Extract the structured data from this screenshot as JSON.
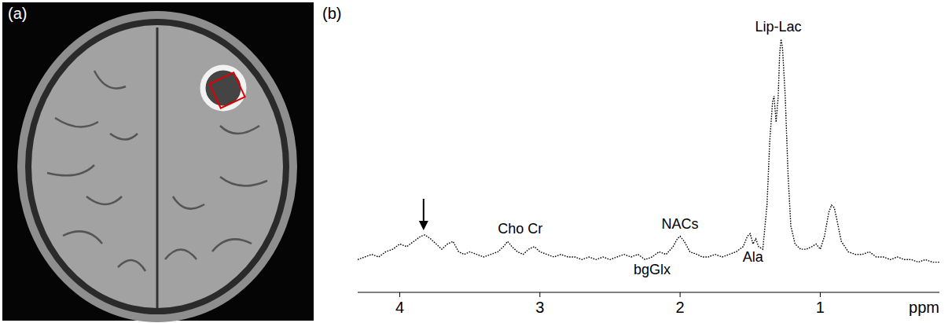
{
  "figure": {
    "panel_labels": [
      "(a)",
      "(b)"
    ]
  },
  "chart_data": {
    "type": "line",
    "xlabel": "ppm",
    "x": [
      4.3,
      4.25,
      4.2,
      4.15,
      4.1,
      4.05,
      4.0,
      3.95,
      3.9,
      3.85,
      3.82,
      3.78,
      3.74,
      3.7,
      3.66,
      3.62,
      3.58,
      3.54,
      3.5,
      3.45,
      3.4,
      3.35,
      3.3,
      3.26,
      3.23,
      3.2,
      3.16,
      3.12,
      3.08,
      3.04,
      3.0,
      2.95,
      2.9,
      2.85,
      2.8,
      2.75,
      2.7,
      2.65,
      2.6,
      2.55,
      2.5,
      2.45,
      2.4,
      2.35,
      2.3,
      2.25,
      2.2,
      2.15,
      2.1,
      2.05,
      2.02,
      2.0,
      1.97,
      1.93,
      1.88,
      1.84,
      1.8,
      1.75,
      1.7,
      1.65,
      1.6,
      1.55,
      1.52,
      1.5,
      1.48,
      1.46,
      1.44,
      1.41,
      1.38,
      1.36,
      1.34,
      1.33,
      1.315,
      1.3,
      1.29,
      1.28,
      1.27,
      1.25,
      1.23,
      1.21,
      1.18,
      1.14,
      1.1,
      1.06,
      1.03,
      1.0,
      0.97,
      0.94,
      0.92,
      0.9,
      0.88,
      0.85,
      0.8,
      0.75,
      0.7,
      0.65,
      0.6,
      0.55,
      0.5,
      0.45,
      0.4,
      0.35,
      0.3,
      0.25,
      0.2,
      0.15
    ],
    "values": [
      9,
      10,
      11,
      10,
      12,
      13,
      15,
      14,
      16,
      18,
      18.5,
      17,
      15,
      13,
      15,
      16,
      12,
      11,
      12,
      11,
      10,
      11,
      12,
      14,
      16,
      14,
      12,
      11,
      13,
      14,
      12,
      11,
      10,
      11,
      10,
      10,
      9,
      10,
      9,
      10,
      9,
      10,
      11,
      10,
      11,
      9,
      10,
      12,
      11,
      14,
      17,
      18,
      16,
      12,
      11,
      10,
      10,
      11,
      10,
      11,
      12,
      14,
      18,
      19,
      15,
      17,
      14,
      13,
      30,
      55,
      70,
      72,
      62,
      72,
      88,
      94,
      91,
      72,
      42,
      22,
      15,
      13,
      13,
      14,
      15,
      13,
      18,
      27,
      30,
      29,
      24,
      16,
      12,
      11,
      11,
      12,
      10,
      10,
      9,
      10,
      9,
      9,
      8,
      9,
      8,
      8
    ],
    "color": "#000000",
    "line_style": "dotted",
    "xlim": [
      4.3,
      0.15
    ],
    "xticks": [
      4,
      3,
      2,
      1
    ],
    "ylim": [
      0,
      100
    ],
    "tick_labels": "x",
    "annotations": [
      {
        "text": "Lip-Lac",
        "x": 1.3
      },
      {
        "text": "NACs",
        "x": 2.0
      },
      {
        "text": "bgGlx",
        "x": 2.2
      },
      {
        "text": "Ala",
        "x": 1.48
      },
      {
        "text": "Cho Cr",
        "x": 3.14
      }
    ],
    "arrow": {
      "x": 3.83
    }
  }
}
